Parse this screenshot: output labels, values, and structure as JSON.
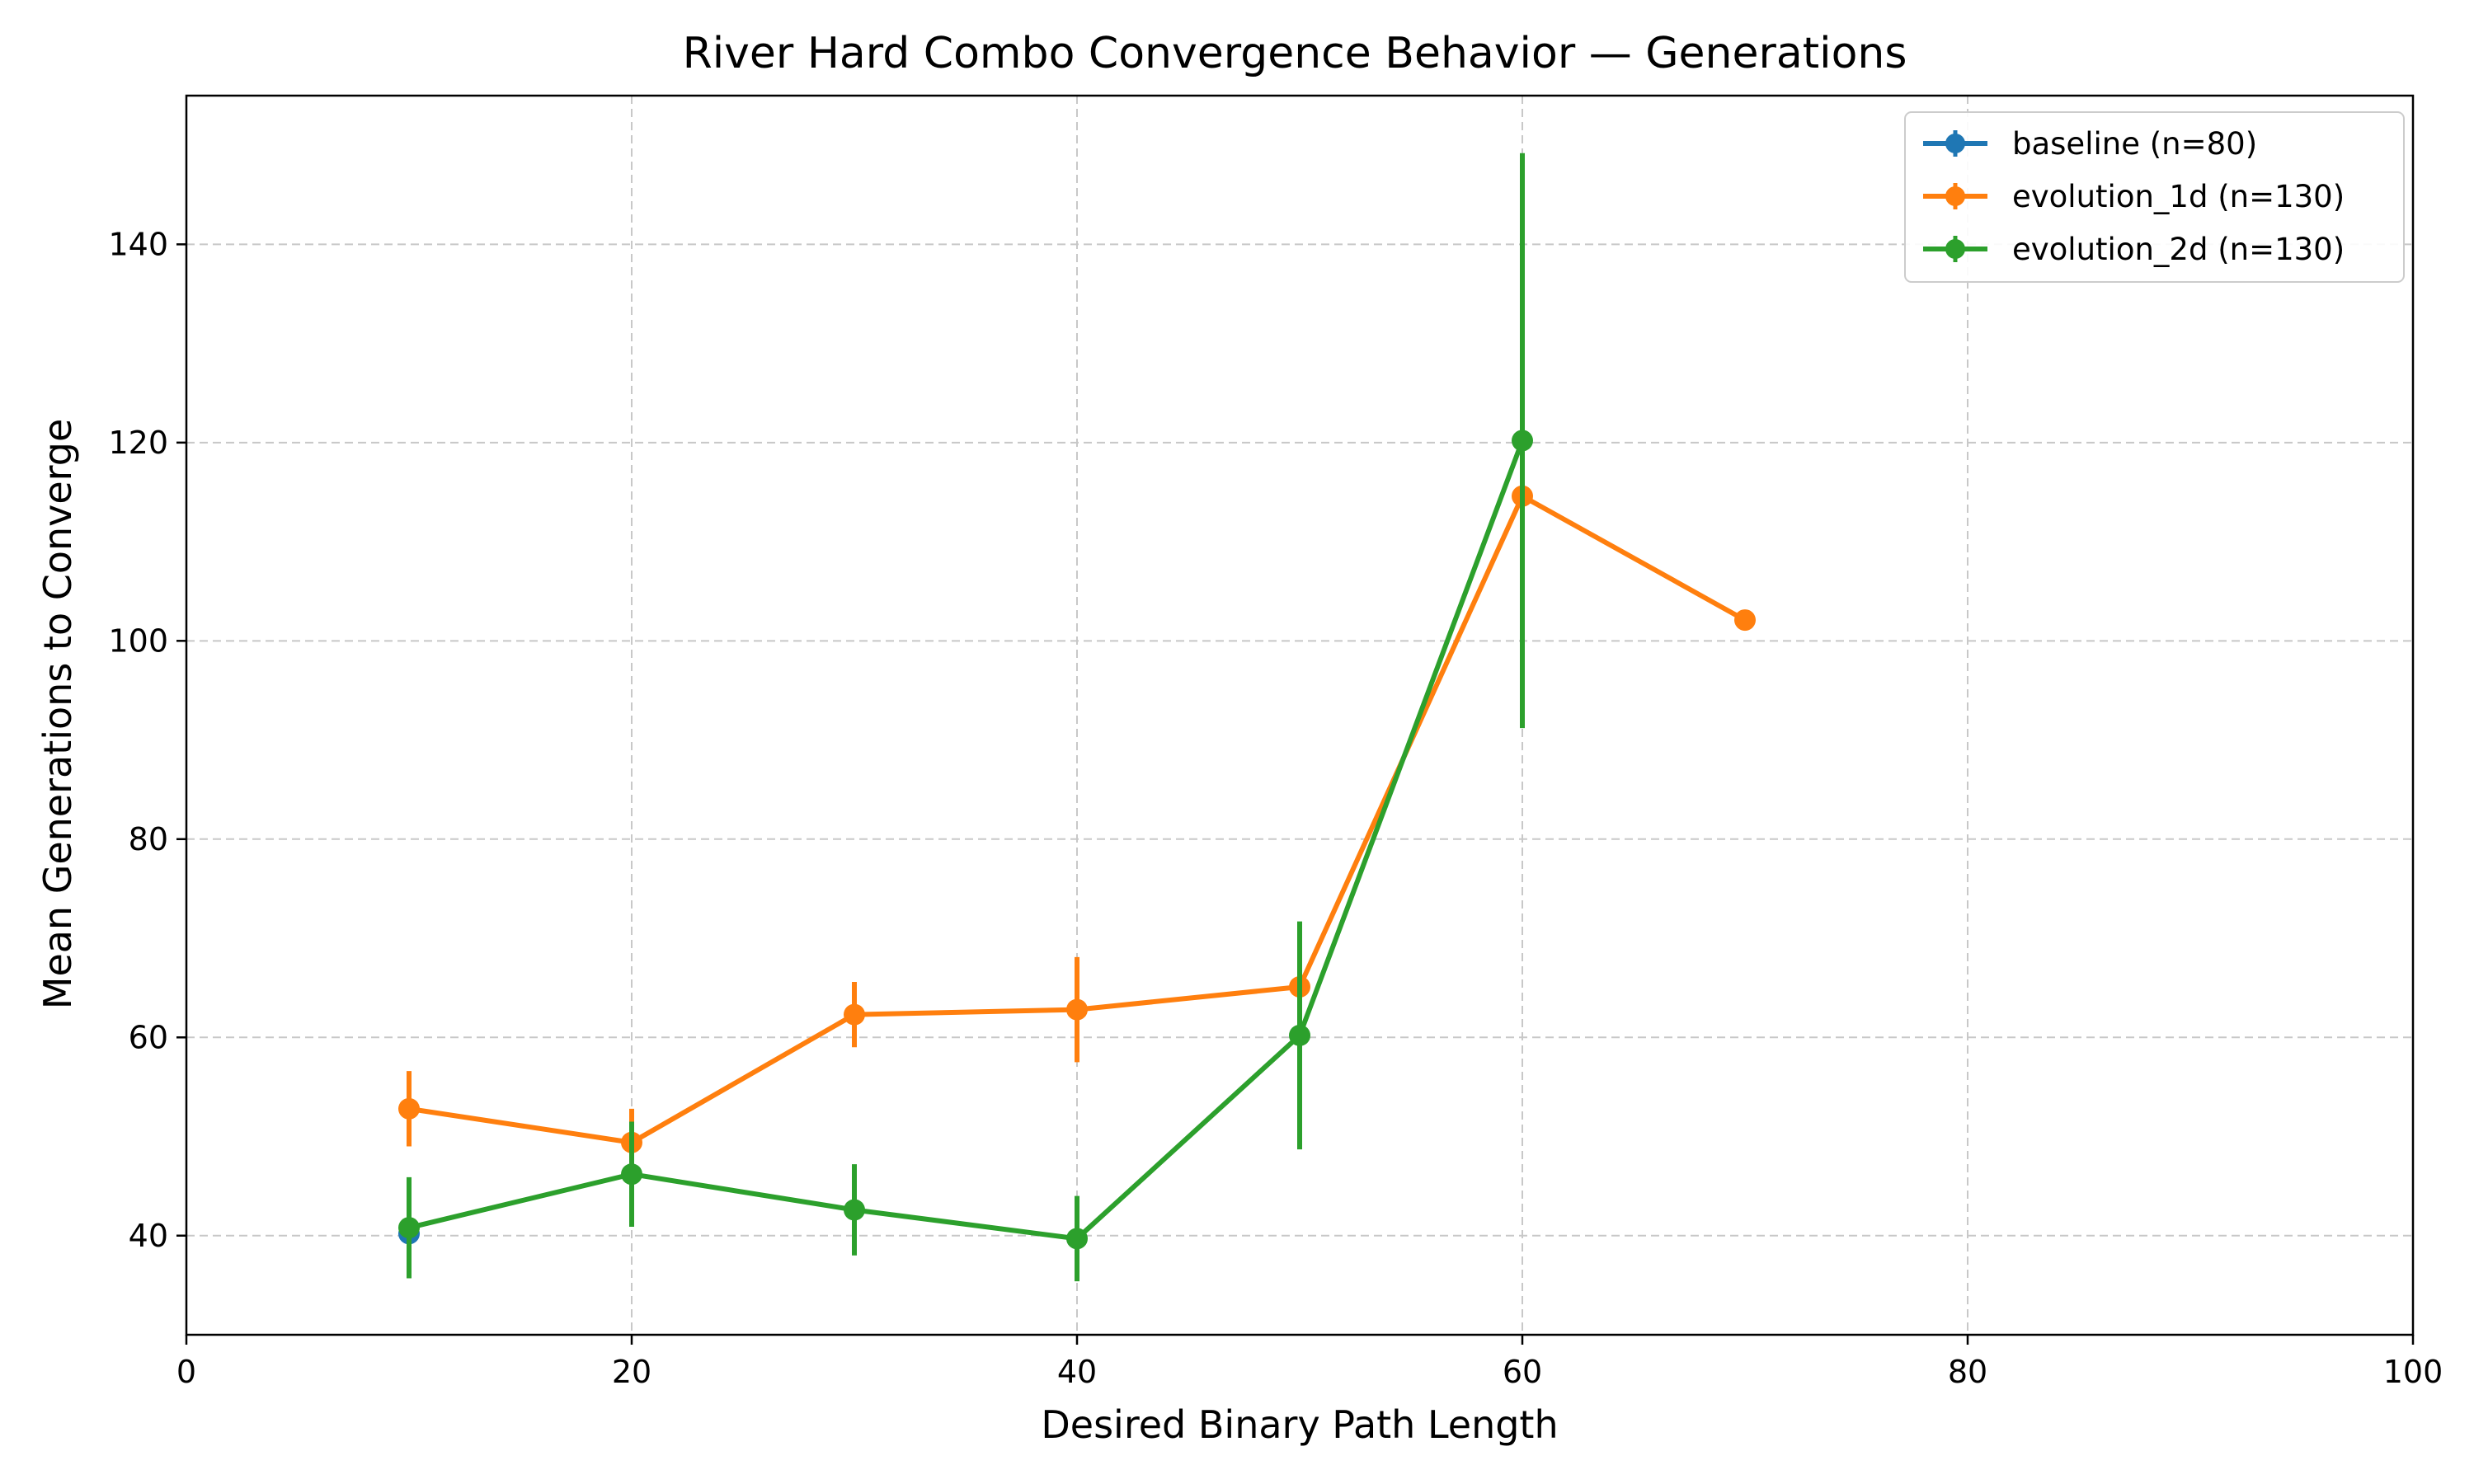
{
  "chart_data": {
    "type": "line",
    "title": "River Hard Combo Convergence Behavior — Generations",
    "xlabel": "Desired Binary Path Length",
    "ylabel": "Mean Generations to Converge",
    "xlim": [
      0,
      100
    ],
    "ylim": [
      30,
      155
    ],
    "xticks": [
      0,
      20,
      40,
      60,
      80,
      100
    ],
    "yticks": [
      40,
      60,
      80,
      100,
      120,
      140
    ],
    "grid": true,
    "legend_position": "top-right",
    "series": [
      {
        "name": "baseline (n=80)",
        "color": "#1f77b4",
        "x": [
          10
        ],
        "y": [
          40.2
        ],
        "err": [
          0
        ]
      },
      {
        "name": "evolution_1d (n=130)",
        "color": "#ff7f0e",
        "x": [
          10,
          20,
          30,
          40,
          50,
          60,
          70
        ],
        "y": [
          52.8,
          49.4,
          62.3,
          62.8,
          65.1,
          114.6,
          102.1
        ],
        "err": [
          3.8,
          3.4,
          3.3,
          5.3,
          0,
          0,
          0
        ]
      },
      {
        "name": "evolution_2d (n=130)",
        "color": "#2ca02c",
        "x": [
          10,
          20,
          30,
          40,
          50,
          60
        ],
        "y": [
          40.8,
          46.2,
          42.6,
          39.7,
          60.2,
          120.2
        ],
        "err": [
          5.1,
          5.3,
          4.6,
          4.3,
          11.5,
          29.0
        ]
      }
    ]
  }
}
